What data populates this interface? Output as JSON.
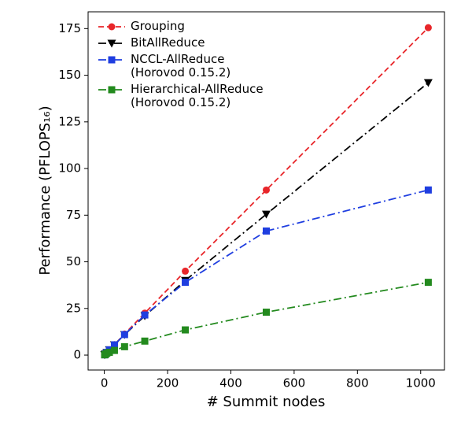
{
  "chart_data": {
    "type": "line",
    "xlabel": "# Summit nodes",
    "ylabel": "Performance (PFLOPS₁₆)",
    "x": [
      1,
      2,
      4,
      8,
      16,
      32,
      64,
      128,
      256,
      512,
      1024
    ],
    "series": [
      {
        "name": "Grouping",
        "color": "#e8262a",
        "linestyle": "dashed",
        "marker": "circle",
        "values": [
          0.17,
          0.35,
          0.7,
          1.4,
          2.8,
          5.6,
          11.3,
          22.5,
          45,
          88.5,
          175.5
        ]
      },
      {
        "name": "BitAllReduce",
        "color": "#000000",
        "linestyle": "dashdot",
        "marker": "triangle-down",
        "values": [
          0.17,
          0.35,
          0.7,
          1.4,
          2.8,
          5.5,
          11,
          21,
          40,
          75.5,
          146
        ]
      },
      {
        "name": "NCCL-AllReduce\n(Horovod 0.15.2)",
        "color": "#1f3ee0",
        "linestyle": "dashdot",
        "marker": "square",
        "values": [
          0.17,
          0.35,
          0.7,
          1.4,
          2.8,
          5.5,
          11,
          21.5,
          39,
          66.5,
          88.5
        ]
      },
      {
        "name": "Hierarchical-AllReduce\n(Horovod 0.15.2)",
        "color": "#238a1e",
        "linestyle": "dashdot",
        "marker": "square",
        "values": [
          0.15,
          0.3,
          0.5,
          1,
          1.5,
          2.5,
          4.5,
          7.5,
          13.5,
          23,
          39
        ]
      }
    ],
    "xlim": [
      -51.2,
      1075.2
    ],
    "xticks": [
      0,
      200,
      400,
      600,
      800,
      1000
    ],
    "ylim": [
      -8,
      184
    ],
    "yticks": [
      0,
      25,
      50,
      75,
      100,
      125,
      150,
      175
    ],
    "grid": false,
    "legend": "upper left"
  }
}
